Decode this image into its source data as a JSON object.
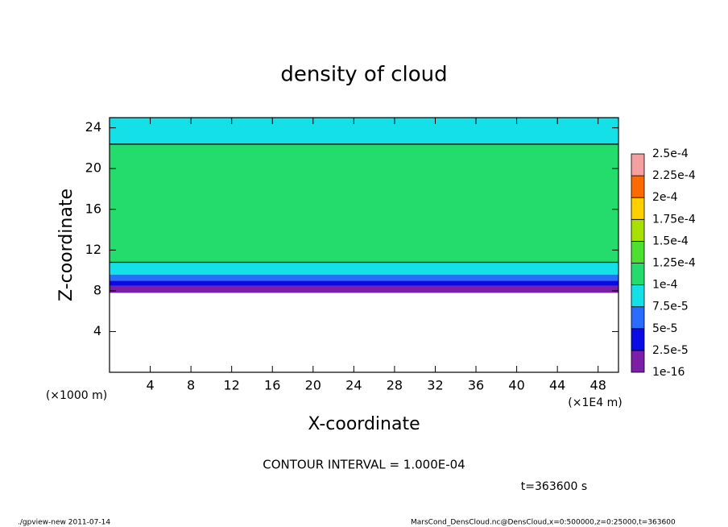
{
  "chart_data": {
    "type": "heatmap",
    "title": "density of cloud",
    "xlabel": "X-coordinate",
    "ylabel": "Z-coordinate",
    "x_unit_label": "(×1E4 m)",
    "y_unit_label": "(×1000 m)",
    "xlim": [
      0,
      50
    ],
    "ylim": [
      0,
      25
    ],
    "xticks": [
      4,
      8,
      12,
      16,
      20,
      24,
      28,
      32,
      36,
      40,
      44,
      48
    ],
    "yticks": [
      4,
      8,
      12,
      16,
      20,
      24
    ],
    "profile": {
      "z_edges": [
        7.8,
        8.5,
        9,
        9.6,
        10.8,
        22.4,
        25
      ],
      "values": [
        1e-05,
        3.5e-05,
        6e-05,
        8.5e-05,
        0.00011,
        8.5e-05
      ]
    },
    "contour_level": 0.0001,
    "colorbar": {
      "levels": [
        {
          "value": 1e-16,
          "label": "1e-16"
        },
        {
          "value": 2.5e-05,
          "label": "2.5e-5"
        },
        {
          "value": 5e-05,
          "label": "5e-5"
        },
        {
          "value": 7.5e-05,
          "label": "7.5e-5"
        },
        {
          "value": 0.0001,
          "label": "1e-4"
        },
        {
          "value": 0.000125,
          "label": "1.25e-4"
        },
        {
          "value": 0.00015,
          "label": "1.5e-4"
        },
        {
          "value": 0.000175,
          "label": "1.75e-4"
        },
        {
          "value": 0.0002,
          "label": "2e-4"
        },
        {
          "value": 0.000225,
          "label": "2.25e-4"
        },
        {
          "value": 0.00025,
          "label": "2.5e-4"
        }
      ],
      "colors": [
        "#7b1fa8",
        "#0a0ae6",
        "#2a6cff",
        "#14e0e8",
        "#24dc6c",
        "#4ee030",
        "#a8e000",
        "#ffd000",
        "#ff6a00",
        "#f4a0a0"
      ]
    },
    "contour_note": "CONTOUR INTERVAL = 1.000E-04",
    "time_note": "t=363600 s",
    "footer_left": "./gpview-new  2011-07-14",
    "footer_right": "MarsCond_DensCloud.nc@DensCloud,x=0:500000,z=0:25000,t=363600"
  }
}
